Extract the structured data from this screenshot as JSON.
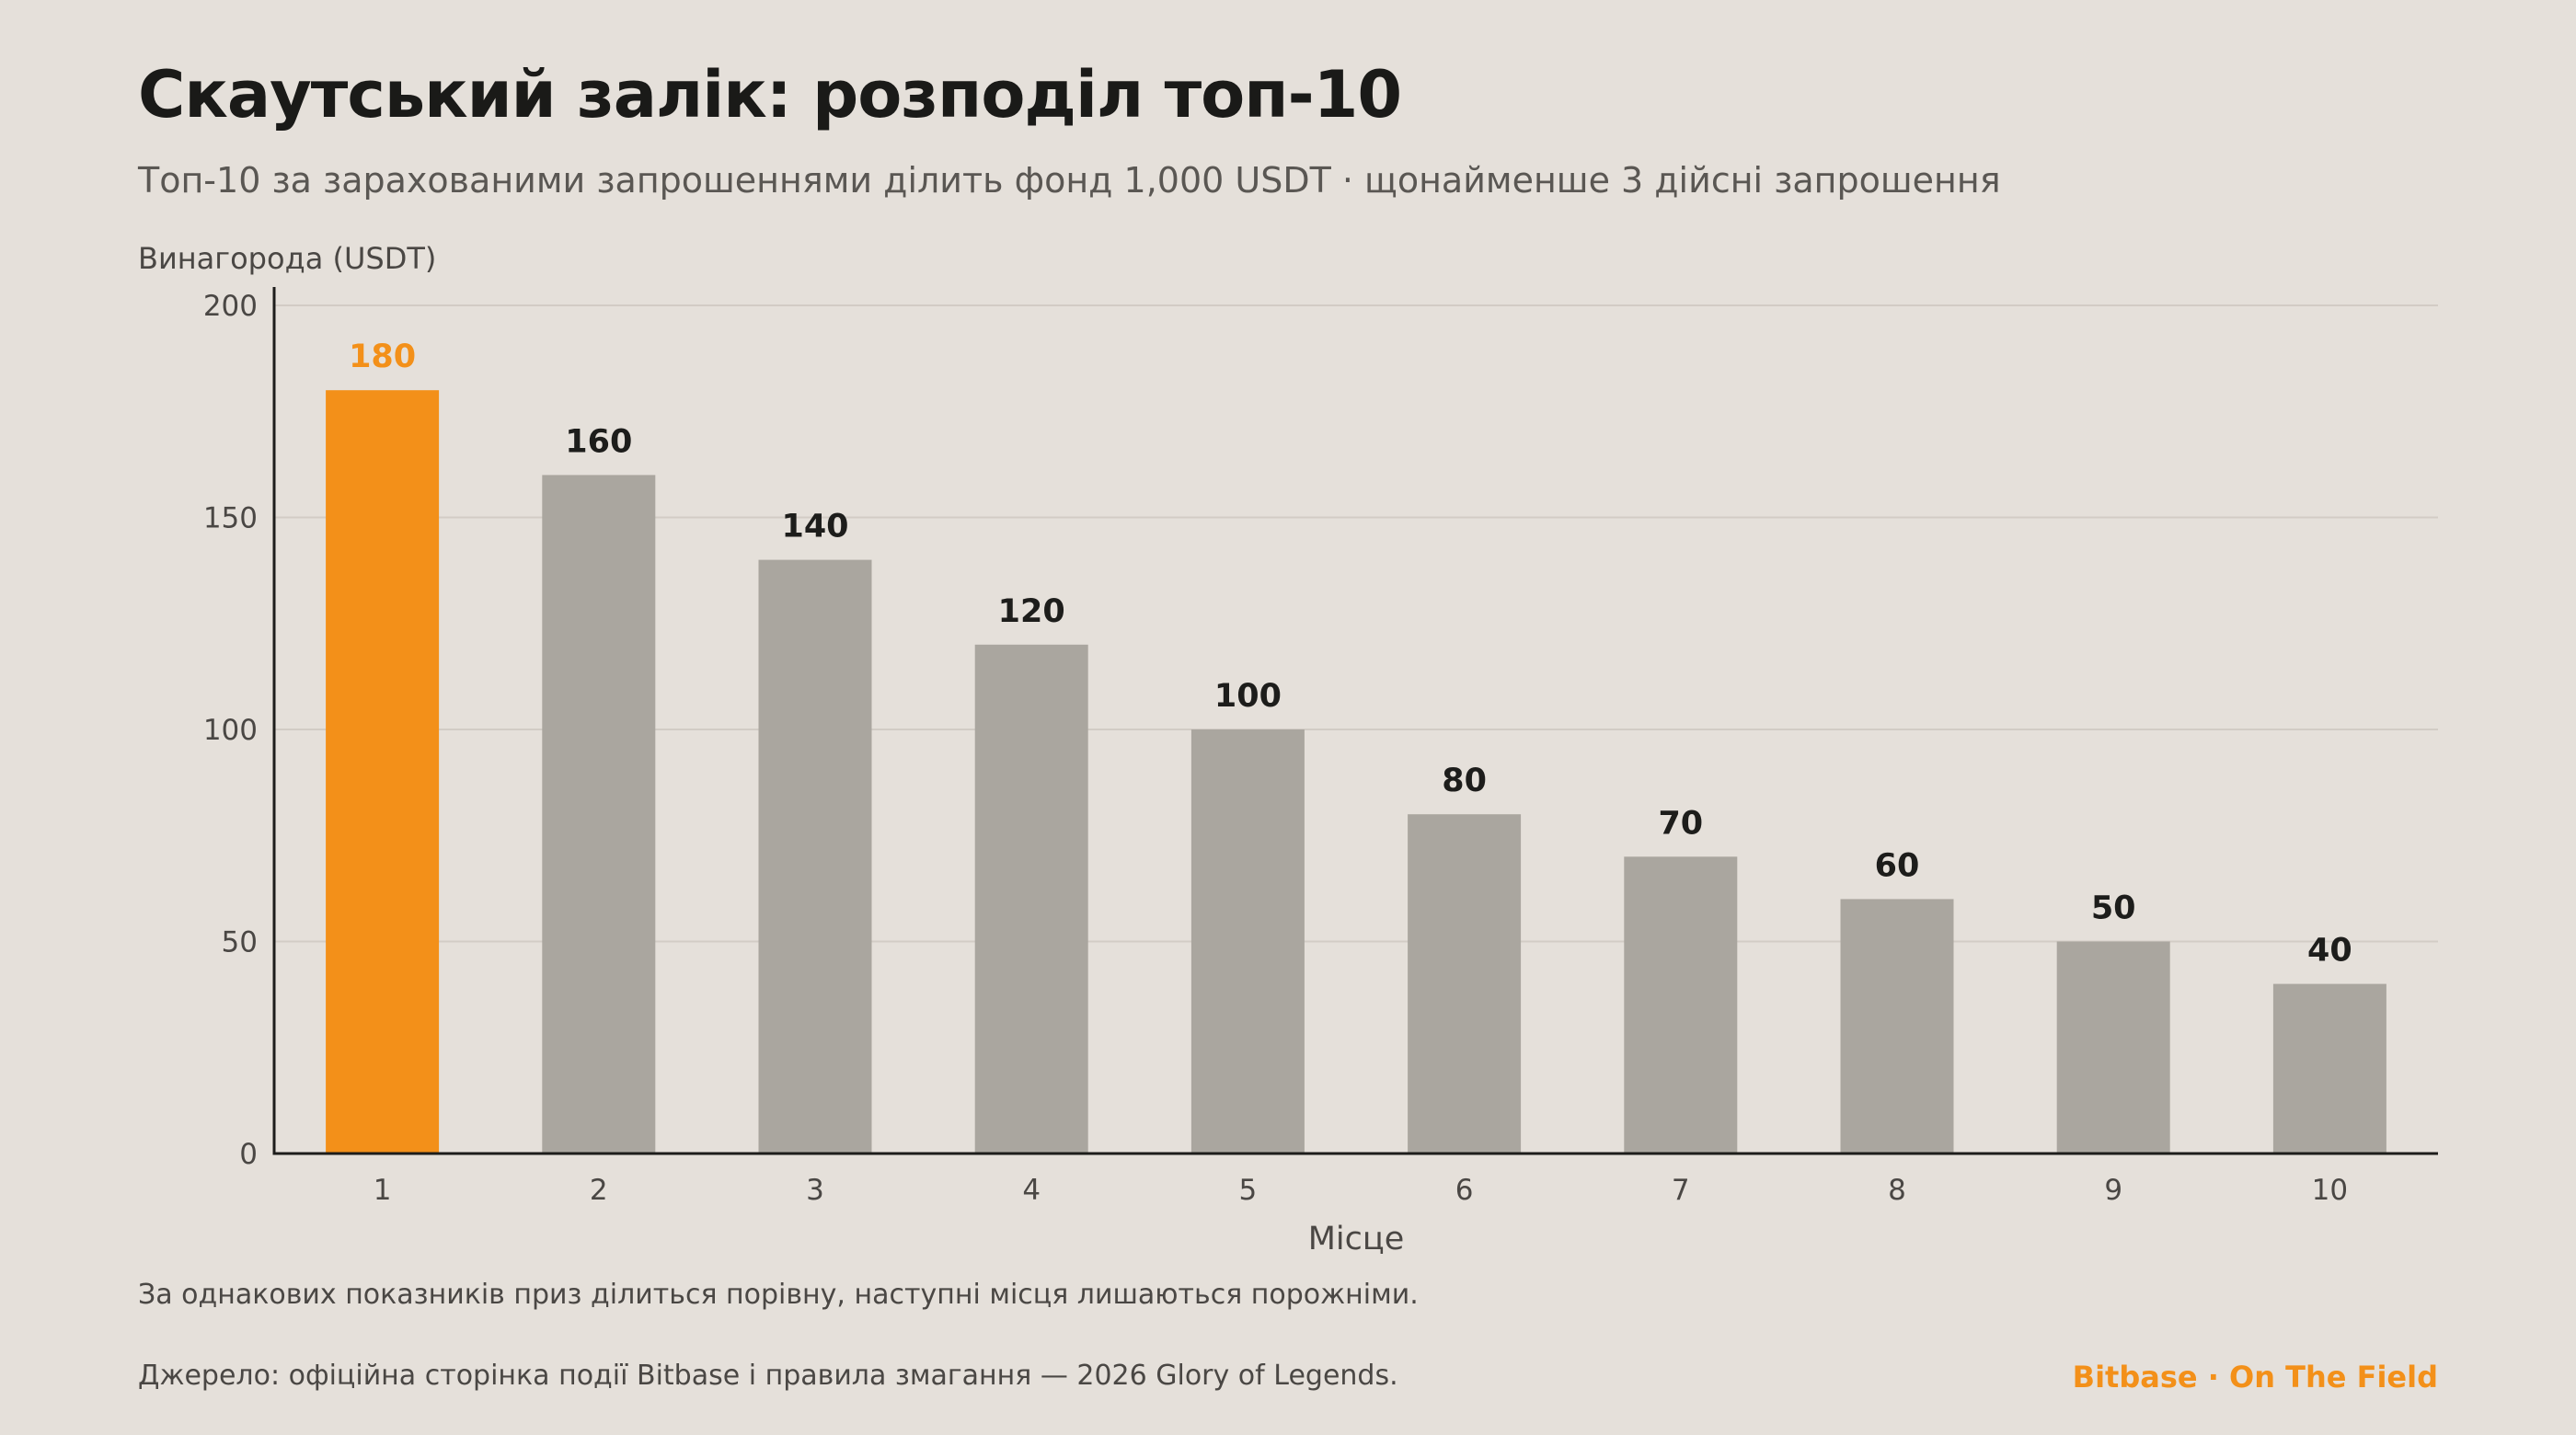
{
  "header": {
    "title": "Скаутський залік: розподіл топ-10",
    "subtitle": "Топ-10 за зарахованими запрошеннями ділить фонд 1,000 USDT · щонайменше 3 дійсні запрошення"
  },
  "footer": {
    "note": "За однакових показників приз ділиться порівну, наступні місця лишаються порожніми.",
    "source": "Джерело: офіційна сторінка події Bitbase і правила змагання — 2026 Glory of Legends.",
    "brand": "Bitbase · On The Field"
  },
  "colors": {
    "highlight": "#f39019",
    "bar": "#aaa69f",
    "axis": "#1d1d1b",
    "grid": "#d2ccc5",
    "tick_text": "#4a4744",
    "label_text": "#1d1d1b"
  },
  "chart_data": {
    "type": "bar",
    "title": "",
    "xlabel": "Місце",
    "ylabel": "Винагорода (USDT)",
    "categories": [
      "1",
      "2",
      "3",
      "4",
      "5",
      "6",
      "7",
      "8",
      "9",
      "10"
    ],
    "values": [
      180,
      160,
      140,
      120,
      100,
      80,
      70,
      60,
      50,
      40
    ],
    "data_labels": [
      "180",
      "160",
      "140",
      "120",
      "100",
      "80",
      "70",
      "60",
      "50",
      "40"
    ],
    "highlight_index": 0,
    "ylim": [
      0,
      200
    ],
    "yticks": [
      0,
      50,
      100,
      150,
      200
    ],
    "grid": true,
    "legend": "none"
  }
}
